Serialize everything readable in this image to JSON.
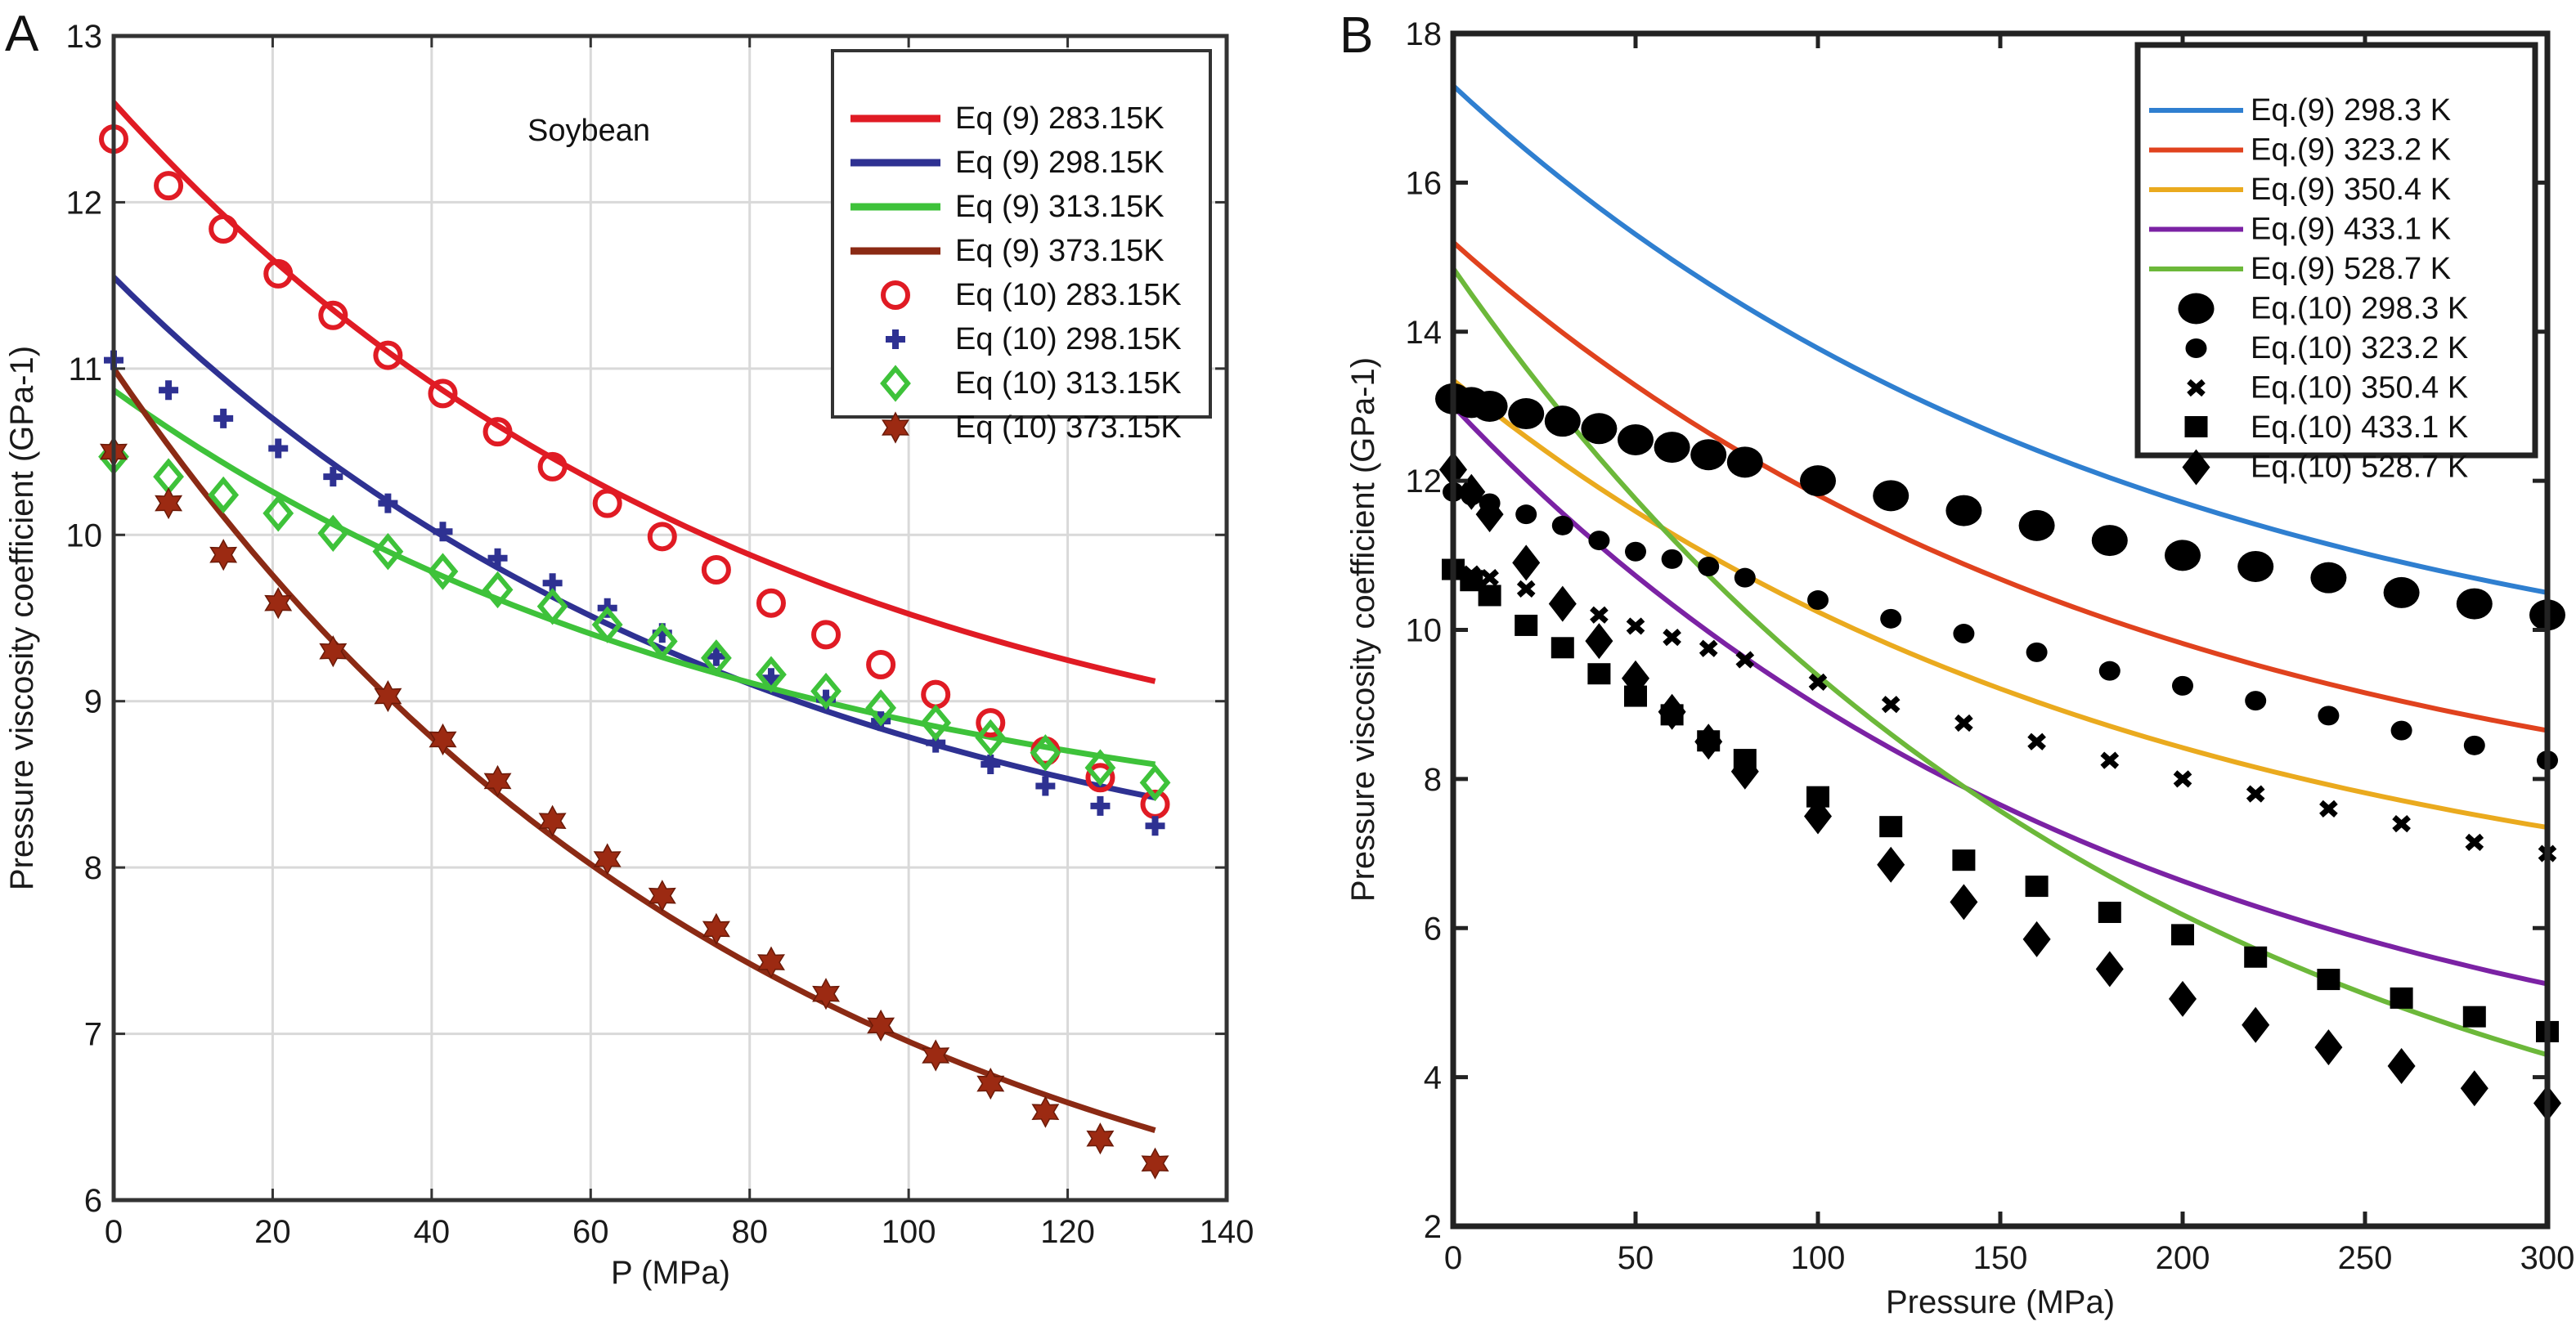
{
  "figure": {
    "panels": [
      "A",
      "B"
    ]
  },
  "chart_data": [
    {
      "panel_label": "A",
      "type": "line",
      "title": "",
      "annotation": "Soybean",
      "xlabel": "P (MPa)",
      "ylabel": "Pressure viscosity coefficient (GPa-1)",
      "xlim": [
        0,
        140
      ],
      "ylim": [
        6,
        13
      ],
      "xticks": [
        0,
        20,
        40,
        60,
        80,
        100,
        120,
        140
      ],
      "yticks": [
        6,
        7,
        8,
        9,
        10,
        11,
        12,
        13
      ],
      "grid": true,
      "legend_position": "top-right",
      "curves": [
        {
          "name": "Eq (9) 283.15K",
          "color": "#e01b24",
          "kind": "line",
          "x": [
            0,
            131
          ],
          "y0": 12.6,
          "y1": 9.12
        },
        {
          "name": "Eq (9) 298.15K",
          "color": "#2e3192",
          "kind": "line",
          "x": [
            0,
            131
          ],
          "y0": 11.55,
          "y1": 8.42
        },
        {
          "name": "Eq (9) 313.15K",
          "color": "#3ec23a",
          "kind": "line",
          "x": [
            0,
            131
          ],
          "y0": 10.87,
          "y1": 8.62
        },
        {
          "name": "Eq (9) 373.15K",
          "color": "#8b2a14",
          "kind": "line",
          "x": [
            0,
            131
          ],
          "y0": 11.0,
          "y1": 6.42
        }
      ],
      "x_points": [
        0,
        6.9,
        13.8,
        20.7,
        27.6,
        34.5,
        41.4,
        48.3,
        55.2,
        62.1,
        69.0,
        75.8,
        82.7,
        89.6,
        96.5,
        103.4,
        110.3,
        117.2,
        124.1,
        131.0
      ],
      "series": [
        {
          "name": "Eq (10) 283.15K",
          "marker": "circle-open",
          "color": "#e01b24",
          "values": [
            12.38,
            12.1,
            11.84,
            11.57,
            11.32,
            11.08,
            10.85,
            10.62,
            10.41,
            10.19,
            9.99,
            9.79,
            9.59,
            9.4,
            9.22,
            9.04,
            8.87,
            8.7,
            8.54,
            8.38
          ]
        },
        {
          "name": "Eq (10) 298.15K",
          "marker": "plus",
          "color": "#2e3192",
          "values": [
            11.05,
            10.87,
            10.7,
            10.52,
            10.35,
            10.19,
            10.02,
            9.86,
            9.71,
            9.56,
            9.41,
            9.27,
            9.14,
            9.01,
            8.88,
            8.75,
            8.62,
            8.49,
            8.37,
            8.25
          ]
        },
        {
          "name": "Eq (10) 313.15K",
          "marker": "diamond-open",
          "color": "#3ec23a",
          "values": [
            10.47,
            10.35,
            10.24,
            10.13,
            10.01,
            9.9,
            9.78,
            9.67,
            9.57,
            9.46,
            9.36,
            9.26,
            9.16,
            9.06,
            8.96,
            8.87,
            8.78,
            8.69,
            8.6,
            8.51
          ]
        },
        {
          "name": "Eq (10) 373.15K",
          "marker": "hexagram",
          "color": "#9c2a12",
          "values": [
            10.5,
            10.19,
            9.88,
            9.59,
            9.3,
            9.03,
            8.77,
            8.52,
            8.28,
            8.05,
            7.83,
            7.63,
            7.43,
            7.24,
            7.05,
            6.87,
            6.7,
            6.53,
            6.37,
            6.22
          ]
        }
      ]
    },
    {
      "panel_label": "B",
      "type": "line",
      "title": "",
      "xlabel": "Pressure (MPa)",
      "ylabel": "Pressure viscosity coefficient (GPa-1)",
      "xlim": [
        0,
        300
      ],
      "ylim": [
        2,
        18
      ],
      "xticks": [
        0,
        50,
        100,
        150,
        200,
        250,
        300
      ],
      "yticks": [
        2,
        4,
        6,
        8,
        10,
        12,
        14,
        16,
        18
      ],
      "grid": false,
      "legend_position": "top-right",
      "curves": [
        {
          "name": "Eq.(9) 298.3 K",
          "color": "#2f7fd0",
          "kind": "line",
          "x": [
            0,
            300
          ],
          "y0": 17.3,
          "y1": 10.5
        },
        {
          "name": "Eq.(9) 323.2 K",
          "color": "#e0421e",
          "kind": "line",
          "x": [
            0,
            300
          ],
          "y0": 15.2,
          "y1": 8.65
        },
        {
          "name": "Eq.(9) 350.4 K",
          "color": "#eaaa1e",
          "kind": "line",
          "x": [
            0,
            300
          ],
          "y0": 13.35,
          "y1": 7.35
        },
        {
          "name": "Eq.(9) 433.1 K",
          "color": "#7b22a4",
          "kind": "line",
          "x": [
            0,
            300
          ],
          "y0": 13.0,
          "y1": 5.25
        },
        {
          "name": "Eq.(9) 528.7 K",
          "color": "#6cb83a",
          "kind": "line",
          "x": [
            0,
            300
          ],
          "y0": 14.85,
          "y1": 4.3
        }
      ],
      "x_points": [
        0,
        5,
        10,
        20,
        30,
        40,
        50,
        60,
        70,
        80,
        100,
        120,
        140,
        160,
        180,
        200,
        220,
        240,
        260,
        280,
        300
      ],
      "series": [
        {
          "name": "Eq.(10) 298.3 K",
          "marker": "circle-large",
          "color": "#000000",
          "values": [
            13.1,
            13.05,
            13.0,
            12.9,
            12.8,
            12.7,
            12.55,
            12.45,
            12.35,
            12.25,
            12.0,
            11.8,
            11.6,
            11.4,
            11.2,
            11.0,
            10.85,
            10.7,
            10.5,
            10.35,
            10.2
          ]
        },
        {
          "name": "Eq.(10) 323.2 K",
          "marker": "circle-small",
          "color": "#000000",
          "values": [
            11.85,
            11.8,
            11.7,
            11.55,
            11.4,
            11.2,
            11.05,
            10.95,
            10.85,
            10.7,
            10.4,
            10.15,
            9.95,
            9.7,
            9.45,
            9.25,
            9.05,
            8.85,
            8.65,
            8.45,
            8.25
          ]
        },
        {
          "name": "Eq.(10) 350.4 K",
          "marker": "x",
          "color": "#000000",
          "values": [
            10.8,
            10.75,
            10.7,
            10.55,
            10.35,
            10.2,
            10.05,
            9.9,
            9.75,
            9.6,
            9.3,
            9.0,
            8.75,
            8.5,
            8.25,
            8.0,
            7.8,
            7.6,
            7.4,
            7.15,
            7.0
          ]
        },
        {
          "name": "Eq.(10) 433.1 K",
          "marker": "square",
          "color": "#000000",
          "values": [
            10.8,
            10.65,
            10.45,
            10.05,
            9.75,
            9.4,
            9.1,
            8.85,
            8.5,
            8.25,
            7.75,
            7.35,
            6.9,
            6.55,
            6.2,
            5.9,
            5.6,
            5.3,
            5.05,
            4.8,
            4.6
          ]
        },
        {
          "name": "Eq.(10) 528.7 K",
          "marker": "diamond",
          "color": "#000000",
          "values": [
            12.15,
            11.85,
            11.55,
            10.9,
            10.35,
            9.85,
            9.35,
            8.9,
            8.5,
            8.1,
            7.5,
            6.85,
            6.35,
            5.85,
            5.45,
            5.05,
            4.7,
            4.4,
            4.15,
            3.85,
            3.65
          ]
        }
      ]
    }
  ]
}
